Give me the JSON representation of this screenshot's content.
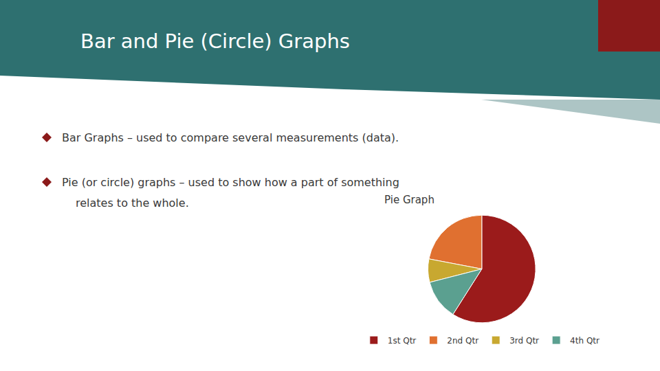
{
  "chart_data": {
    "type": "pie",
    "title": "Pie Graph",
    "annotations": [
      "Bar and Pie (Circle) Graphs",
      "Bar Graphs – used to compare several measurements (data).",
      "Pie (or circle) graphs – used to show how a part of something",
      "relates to the whole."
    ],
    "categories": [
      "1st Qtr",
      "2nd Qtr",
      "3rd Qtr",
      "4th Qtr"
    ],
    "values": [
      59,
      22,
      7,
      12
    ],
    "colors": [
      "#9B1B1B",
      "#E07030",
      "#C8A830",
      "#5BA090"
    ],
    "legend": "bottom"
  }
}
